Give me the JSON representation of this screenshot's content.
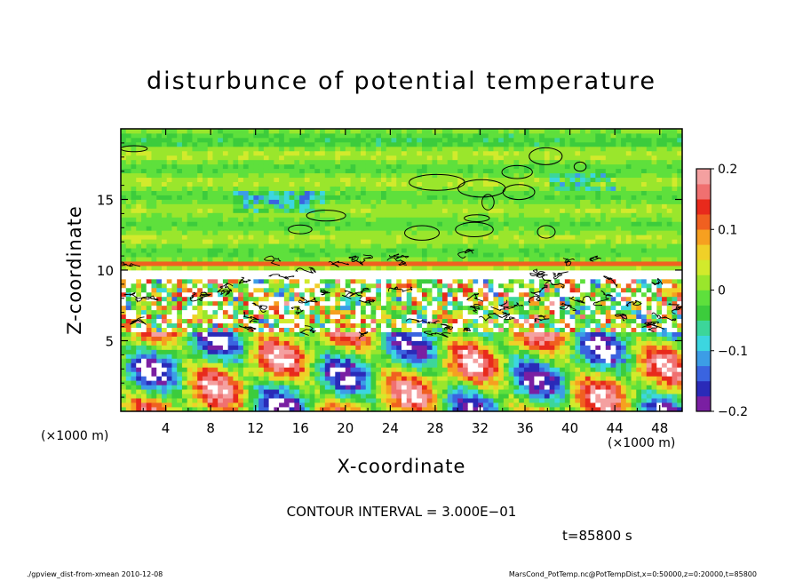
{
  "chart_data": {
    "type": "heatmap",
    "title": "disturbunce of potential temperature",
    "xlabel": "X-coordinate",
    "ylabel": "Z-coordinate",
    "x_unit": "(×1000 m)",
    "z_unit": "(×1000 m)",
    "xlim": [
      0,
      50
    ],
    "ylim": [
      0,
      20
    ],
    "x_ticks": [
      4,
      8,
      12,
      16,
      20,
      24,
      28,
      32,
      36,
      40,
      44,
      48
    ],
    "y_ticks": [
      5,
      10,
      15
    ],
    "colorbar": {
      "range": [
        -0.2,
        0.2
      ],
      "tick_values": [
        0.2,
        0.1,
        0,
        -0.1,
        -0.2
      ],
      "tick_labels": [
        "0.2",
        "0.1",
        "0",
        "−0.1",
        "−0.2"
      ],
      "colors": [
        "#7a1fa2",
        "#2a2ab8",
        "#3a64e0",
        "#3c9de6",
        "#3cd6e0",
        "#3cd69a",
        "#3ccc3c",
        "#5ee03c",
        "#9ae62c",
        "#d2ea2c",
        "#f0d028",
        "#f6a020",
        "#f06020",
        "#e82a1c",
        "#f07070",
        "#f4a0a0"
      ]
    },
    "contour_interval": "CONTOUR INTERVAL = 3.000E−01",
    "time": "t=85800 s",
    "footer_left": "./gpview_dist-from-xmean  2010-12-08",
    "footer_right": "MarsCond_PotTemp.nc@PotTempDist,x=0:50000,z=0:20000,t=85800"
  }
}
